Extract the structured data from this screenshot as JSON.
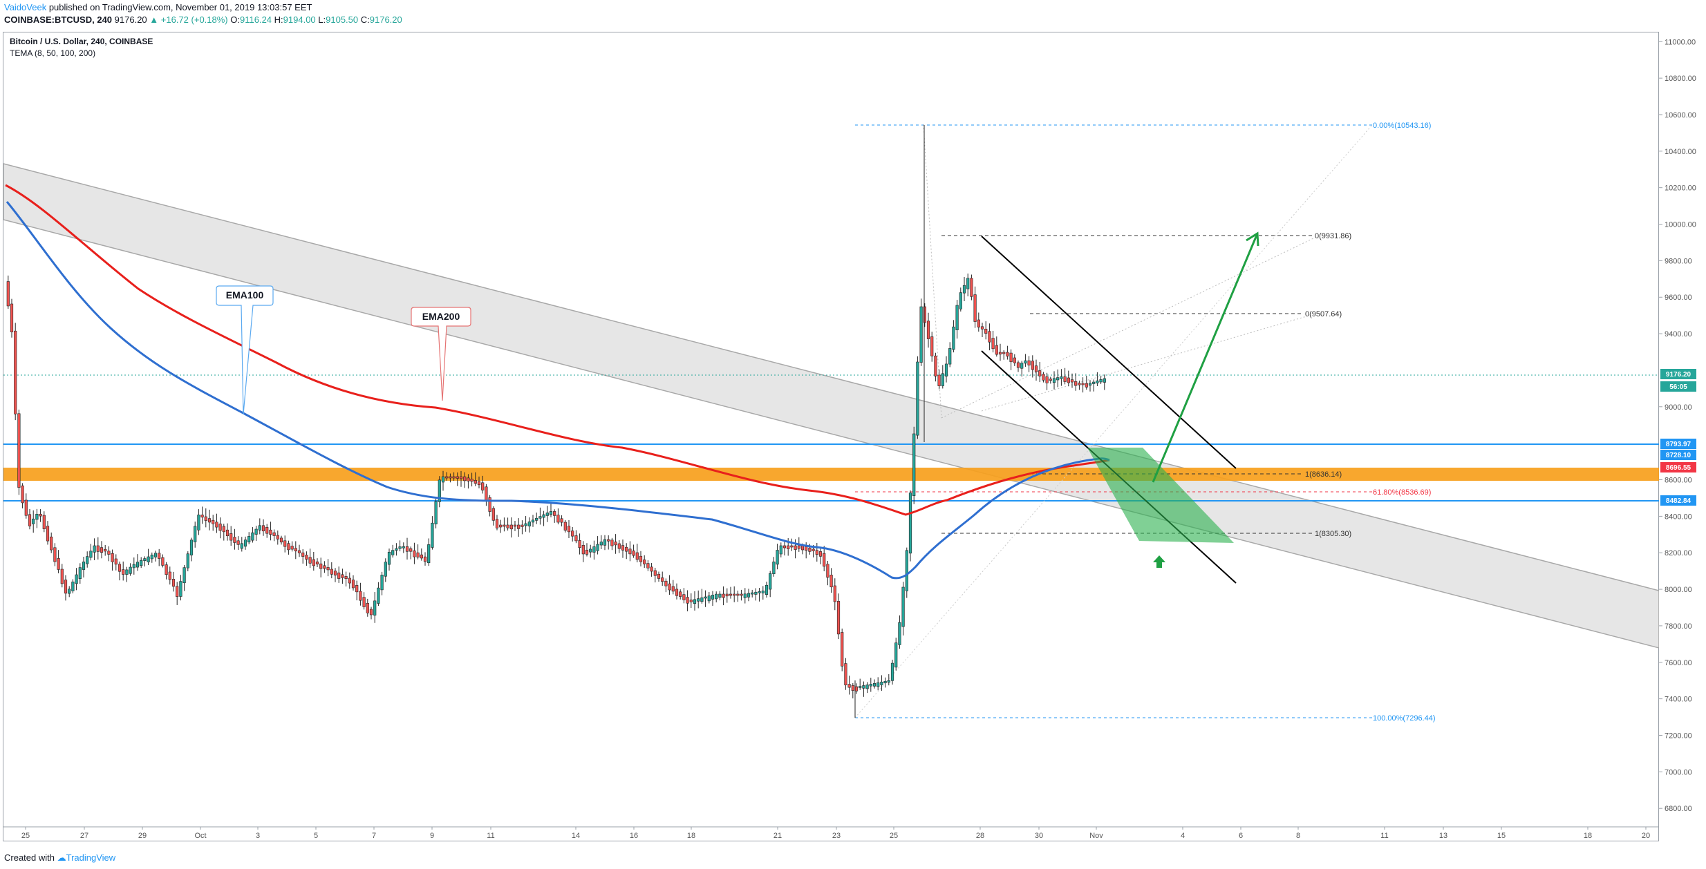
{
  "header": {
    "author": "VaidoVeek",
    "published": "published on TradingView.com, November 01, 2019 13:03:57 EET"
  },
  "quote": {
    "symbol": "COINBASE:BTCUSD, 240",
    "last": "9176.20",
    "arrow": "▲",
    "change": "+16.72 (+0.18%)",
    "open_label": "O:",
    "open": "9116.24",
    "high_label": "H:",
    "high": "9194.00",
    "low_label": "L:",
    "low": "9105.50",
    "close_label": "C:",
    "close": "9176.20"
  },
  "legend": {
    "title": "Bitcoin / U.S. Dollar, 240, COINBASE",
    "indicator": "TEMA (8, 50, 100, 200)"
  },
  "price_ticks": [
    "11000.00",
    "10800.00",
    "10600.00",
    "10400.00",
    "10200.00",
    "10000.00",
    "9800.00",
    "9600.00",
    "9400.00",
    "9000.00",
    "8600.00",
    "8400.00",
    "8200.00",
    "8000.00",
    "7800.00",
    "7600.00",
    "7400.00",
    "7200.00",
    "7000.00",
    "6800.00"
  ],
  "time_ticks": [
    "25",
    "27",
    "29",
    "Oct",
    "3",
    "5",
    "7",
    "9",
    "11",
    "14",
    "16",
    "18",
    "21",
    "23",
    "25",
    "28",
    "30",
    "Nov",
    "4",
    "6",
    "8",
    "11",
    "13",
    "15",
    "18",
    "20"
  ],
  "price_badges": [
    {
      "text": "9176.20",
      "color": "#26a69a"
    },
    {
      "text": "56:05",
      "color": "#26a69a"
    },
    {
      "text": "8793.97",
      "color": "#2196f3"
    },
    {
      "text": "8728.10",
      "color": "#2196f3"
    },
    {
      "text": "8696.55",
      "color": "#f23645"
    },
    {
      "text": "8482.84",
      "color": "#2196f3"
    }
  ],
  "annotations": {
    "ema100": "EMA100",
    "ema200": "EMA200",
    "fib_top": "0.00%(10543.16)",
    "fib_bottom": "100.00%(7296.44)",
    "fib_618": "61.80%(8536.69)",
    "proj_0_high": "0(9931.86)",
    "proj_0_mid": "0(9507.64)",
    "proj_1_a": "1(8636.14)",
    "proj_1_b": "1(8305.30)"
  },
  "colors": {
    "up": "#26a69a",
    "down": "#ef5350",
    "ema100": "#2f6fd0",
    "ema200": "#e8201c",
    "support_zone": "#f7a01c",
    "channel_fill": "#e6e6e6"
  },
  "footer": {
    "created": "Created with",
    "brand": "TradingView"
  }
}
